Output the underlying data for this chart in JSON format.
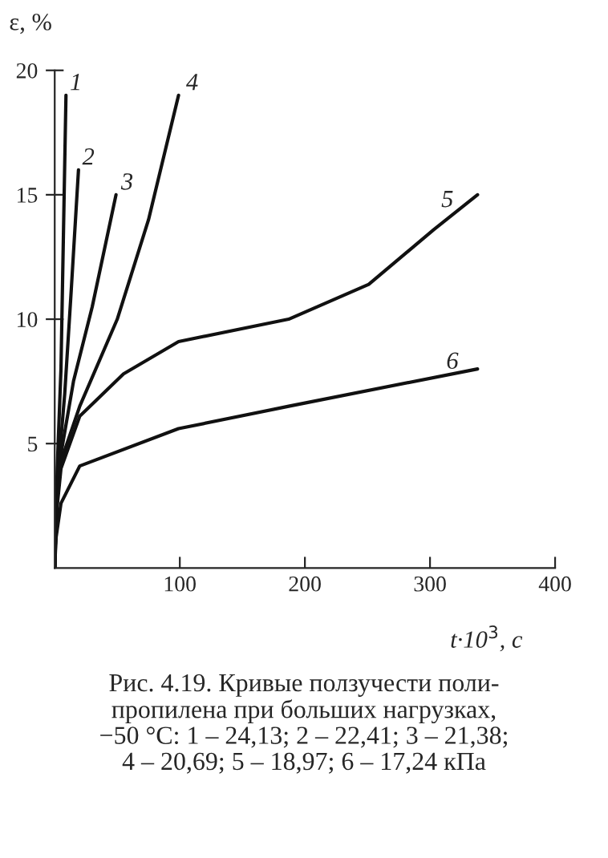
{
  "chart_data": {
    "type": "line",
    "xlabel": "t·10$^{3}$, с",
    "ylabel": "ε, %",
    "xlim": [
      0,
      400
    ],
    "ylim": [
      0,
      20
    ],
    "xticks": [
      100,
      200,
      300,
      400
    ],
    "yticks": [
      5,
      10,
      15,
      20
    ],
    "grid": false,
    "legend": false,
    "marker": "none",
    "line_style": "solid",
    "series": [
      {
        "color": "#111111",
        "x": [
          0,
          1,
          2,
          5,
          9
        ],
        "values": [
          0,
          2,
          4,
          8,
          19
        ]
      },
      {
        "color": "#111111",
        "x": [
          0,
          1,
          3,
          8,
          13,
          19
        ],
        "values": [
          0,
          2,
          4,
          7,
          11,
          16
        ]
      },
      {
        "color": "#111111",
        "x": [
          0,
          1,
          3,
          15,
          30,
          49
        ],
        "values": [
          0,
          2,
          4,
          7.5,
          10.5,
          15
        ]
      },
      {
        "color": "#111111",
        "x": [
          0,
          1,
          3,
          20,
          50,
          75,
          99
        ],
        "values": [
          0,
          2,
          4,
          6.5,
          10,
          14,
          19
        ]
      },
      {
        "color": "#111111",
        "x": [
          0,
          1,
          2,
          5,
          20,
          55,
          99,
          187,
          251,
          303,
          338
        ],
        "values": [
          0,
          1.5,
          2.5,
          4,
          6.1,
          7.8,
          9.1,
          10,
          11.4,
          13.6,
          15
        ]
      },
      {
        "color": "#111111",
        "x": [
          0,
          1,
          5,
          20,
          99,
          187,
          338
        ],
        "values": [
          0,
          1.2,
          2.6,
          4.1,
          5.6,
          6.5,
          8
        ]
      }
    ],
    "annotations": [
      {
        "text": "1",
        "x": 12,
        "y": 19
      },
      {
        "text": "2",
        "x": 22,
        "y": 16
      },
      {
        "text": "3",
        "x": 53,
        "y": 15
      },
      {
        "text": "4",
        "x": 105,
        "y": 19
      },
      {
        "text": "5",
        "x": 309,
        "y": 14.3
      },
      {
        "text": "6",
        "x": 313,
        "y": 7.8
      },
      "Рис. 4.19. Кривые ползучести поли-\nпропилена при больших нагрузках,\n−50 °С: 1 – 24,13; 2 – 22,41; 3 – 21,38;\n4 – 20,69; 5 – 18,97; 6 – 17,24 кПа"
    ]
  }
}
